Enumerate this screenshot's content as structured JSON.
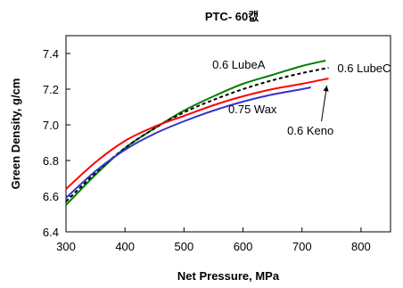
{
  "chart_data": {
    "type": "line",
    "title": "PTC- 60캢",
    "xlabel": "Net Pressure, MPa",
    "ylabel": "Green Density, g/cm",
    "xlim": [
      300,
      850
    ],
    "ylim": [
      6.4,
      7.5
    ],
    "xticks": [
      300,
      400,
      500,
      600,
      700,
      800
    ],
    "yticks": [
      6.4,
      6.6,
      6.8,
      7.0,
      7.2,
      7.4
    ],
    "xtick_labels": [
      "300",
      "400",
      "500",
      "600",
      "700",
      "800"
    ],
    "ytick_labels": [
      "6.4",
      "6.6",
      "6.8",
      "7.0",
      "7.2",
      "7.4"
    ],
    "grid": false,
    "series": [
      {
        "name": "0.6 LubeA",
        "color": "#008000",
        "dash": "solid",
        "points": [
          [
            300,
            6.55
          ],
          [
            350,
            6.72
          ],
          [
            400,
            6.87
          ],
          [
            450,
            6.98
          ],
          [
            500,
            7.08
          ],
          [
            550,
            7.16
          ],
          [
            600,
            7.23
          ],
          [
            650,
            7.28
          ],
          [
            700,
            7.33
          ],
          [
            740,
            7.36
          ]
        ]
      },
      {
        "name": "0.6 LubeC",
        "color": "#000000",
        "dash": "dashed",
        "points": [
          [
            300,
            6.57
          ],
          [
            350,
            6.73
          ],
          [
            400,
            6.87
          ],
          [
            450,
            6.98
          ],
          [
            500,
            7.07
          ],
          [
            550,
            7.14
          ],
          [
            600,
            7.2
          ],
          [
            650,
            7.25
          ],
          [
            700,
            7.29
          ],
          [
            745,
            7.32
          ]
        ]
      },
      {
        "name": "0.6 Keno",
        "color": "#ff0000",
        "dash": "solid",
        "points": [
          [
            300,
            6.64
          ],
          [
            350,
            6.79
          ],
          [
            400,
            6.91
          ],
          [
            450,
            6.99
          ],
          [
            500,
            7.05
          ],
          [
            550,
            7.11
          ],
          [
            600,
            7.16
          ],
          [
            650,
            7.2
          ],
          [
            700,
            7.23
          ],
          [
            745,
            7.26
          ]
        ]
      },
      {
        "name": "0.75 Wax",
        "color": "#3333cc",
        "dash": "solid",
        "points": [
          [
            300,
            6.59
          ],
          [
            350,
            6.74
          ],
          [
            400,
            6.86
          ],
          [
            450,
            6.95
          ],
          [
            500,
            7.02
          ],
          [
            550,
            7.08
          ],
          [
            600,
            7.13
          ],
          [
            650,
            7.17
          ],
          [
            700,
            7.2
          ],
          [
            715,
            7.21
          ]
        ]
      }
    ],
    "annotations": [
      {
        "text": "0.6 LubeA",
        "x": 548,
        "y": 7.34
      },
      {
        "text": "0.6 LubeC",
        "x": 760,
        "y": 7.32
      },
      {
        "text": "0.75 Wax",
        "x": 575,
        "y": 7.09
      },
      {
        "text": "0.6 Keno",
        "x": 675,
        "y": 6.97
      }
    ],
    "arrow": {
      "from": [
        733,
        7.02
      ],
      "to": [
        742,
        7.22
      ]
    }
  }
}
